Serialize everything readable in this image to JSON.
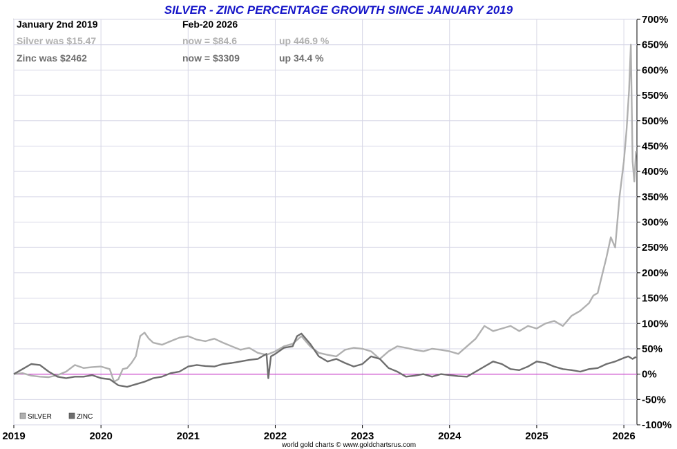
{
  "chart_data": {
    "type": "line",
    "title": "SILVER - ZINC PERCENTAGE GROWTH SINCE JANUARY 2019",
    "source": "world gold charts © www.goldchartsrus.com",
    "info": {
      "start_label": "January 2nd 2019",
      "end_label": "Feb-20  2026",
      "rows": [
        {
          "name": "silver",
          "was": "Silver was $15.47",
          "now": "now = $84.6",
          "change": "up 446.9 %",
          "color": "#b0b0b0"
        },
        {
          "name": "zinc",
          "was": "Zinc was $2462",
          "now": "now = $3309",
          "change": "up 34.4 %",
          "color": "#6e6e6e"
        }
      ]
    },
    "xlabel": "",
    "ylabel": "",
    "xlim": [
      2019.0,
      2026.15
    ],
    "ylim": [
      -100,
      700
    ],
    "x_ticks": [
      {
        "value": 2019,
        "label": "2019"
      },
      {
        "value": 2020,
        "label": "2020"
      },
      {
        "value": 2021,
        "label": "2021"
      },
      {
        "value": 2022,
        "label": "2022"
      },
      {
        "value": 2023,
        "label": "2023"
      },
      {
        "value": 2024,
        "label": "2024"
      },
      {
        "value": 2025,
        "label": "2025"
      },
      {
        "value": 2026,
        "label": "2026"
      }
    ],
    "y_ticks": [
      {
        "value": 700,
        "label": "700%"
      },
      {
        "value": 650,
        "label": "650%"
      },
      {
        "value": 600,
        "label": "600%"
      },
      {
        "value": 550,
        "label": "550%"
      },
      {
        "value": 500,
        "label": "500%"
      },
      {
        "value": 450,
        "label": "450%"
      },
      {
        "value": 400,
        "label": "400%"
      },
      {
        "value": 350,
        "label": "350%"
      },
      {
        "value": 300,
        "label": "300%"
      },
      {
        "value": 250,
        "label": "250%"
      },
      {
        "value": 200,
        "label": "200%"
      },
      {
        "value": 150,
        "label": "150%"
      },
      {
        "value": 100,
        "label": "100%"
      },
      {
        "value": 50,
        "label": "50%"
      },
      {
        "value": 0,
        "label": "0%"
      },
      {
        "value": -50,
        "label": "-50%"
      },
      {
        "value": -100,
        "label": "-100%"
      }
    ],
    "grid": true,
    "zero_line_color": "#cc44cc",
    "legend": {
      "placement": "bottom-left",
      "entries": [
        {
          "label": "SILVER",
          "color": "#b0b0b0"
        },
        {
          "label": "ZINC",
          "color": "#6e6e6e"
        }
      ]
    },
    "series": [
      {
        "name": "SILVER",
        "color": "#b0b0b0",
        "x": [
          2019.0,
          2019.1,
          2019.2,
          2019.3,
          2019.4,
          2019.5,
          2019.6,
          2019.7,
          2019.8,
          2019.9,
          2020.0,
          2020.1,
          2020.15,
          2020.2,
          2020.25,
          2020.3,
          2020.35,
          2020.4,
          2020.45,
          2020.5,
          2020.55,
          2020.6,
          2020.7,
          2020.8,
          2020.9,
          2021.0,
          2021.1,
          2021.2,
          2021.3,
          2021.4,
          2021.5,
          2021.6,
          2021.7,
          2021.8,
          2021.9,
          2022.0,
          2022.1,
          2022.2,
          2022.3,
          2022.4,
          2022.5,
          2022.6,
          2022.7,
          2022.8,
          2022.9,
          2023.0,
          2023.1,
          2023.2,
          2023.3,
          2023.4,
          2023.5,
          2023.6,
          2023.7,
          2023.8,
          2023.9,
          2024.0,
          2024.1,
          2024.2,
          2024.3,
          2024.4,
          2024.5,
          2024.6,
          2024.7,
          2024.8,
          2024.9,
          2025.0,
          2025.1,
          2025.2,
          2025.3,
          2025.4,
          2025.5,
          2025.6,
          2025.65,
          2025.7,
          2025.75,
          2025.8,
          2025.85,
          2025.9,
          2025.95,
          2026.0,
          2026.03,
          2026.06,
          2026.08,
          2026.1,
          2026.12,
          2026.14
        ],
        "y": [
          0,
          2,
          -3,
          -5,
          -6,
          -2,
          5,
          18,
          12,
          14,
          15,
          10,
          -15,
          -10,
          10,
          12,
          22,
          35,
          75,
          82,
          70,
          62,
          58,
          65,
          72,
          75,
          68,
          65,
          70,
          62,
          55,
          48,
          52,
          42,
          38,
          45,
          55,
          60,
          75,
          55,
          42,
          38,
          35,
          48,
          52,
          50,
          45,
          30,
          45,
          55,
          52,
          48,
          45,
          50,
          48,
          45,
          40,
          55,
          70,
          95,
          85,
          90,
          95,
          85,
          95,
          90,
          100,
          105,
          95,
          115,
          125,
          140,
          155,
          160,
          195,
          230,
          270,
          250,
          350,
          420,
          480,
          560,
          650,
          420,
          380,
          440
        ]
      },
      {
        "name": "ZINC",
        "color": "#6e6e6e",
        "x": [
          2019.0,
          2019.1,
          2019.2,
          2019.3,
          2019.4,
          2019.5,
          2019.6,
          2019.7,
          2019.8,
          2019.9,
          2020.0,
          2020.1,
          2020.2,
          2020.3,
          2020.4,
          2020.5,
          2020.6,
          2020.7,
          2020.8,
          2020.9,
          2021.0,
          2021.1,
          2021.2,
          2021.3,
          2021.4,
          2021.5,
          2021.6,
          2021.7,
          2021.8,
          2021.85,
          2021.9,
          2021.92,
          2021.95,
          2022.0,
          2022.1,
          2022.2,
          2022.25,
          2022.3,
          2022.4,
          2022.5,
          2022.6,
          2022.7,
          2022.8,
          2022.9,
          2023.0,
          2023.1,
          2023.2,
          2023.3,
          2023.4,
          2023.5,
          2023.6,
          2023.7,
          2023.8,
          2023.9,
          2024.0,
          2024.1,
          2024.2,
          2024.3,
          2024.4,
          2024.5,
          2024.6,
          2024.7,
          2024.8,
          2024.9,
          2025.0,
          2025.1,
          2025.2,
          2025.3,
          2025.4,
          2025.5,
          2025.6,
          2025.7,
          2025.8,
          2025.9,
          2026.0,
          2026.05,
          2026.1,
          2026.14
        ],
        "y": [
          0,
          10,
          20,
          18,
          5,
          -5,
          -8,
          -5,
          -5,
          -2,
          -8,
          -10,
          -22,
          -25,
          -20,
          -15,
          -8,
          -5,
          2,
          5,
          15,
          18,
          16,
          15,
          20,
          22,
          25,
          28,
          30,
          35,
          40,
          -8,
          35,
          40,
          52,
          55,
          75,
          80,
          60,
          35,
          25,
          30,
          22,
          15,
          20,
          35,
          30,
          12,
          5,
          -5,
          -3,
          0,
          -5,
          0,
          -2,
          -4,
          -5,
          5,
          15,
          25,
          20,
          10,
          8,
          15,
          25,
          22,
          15,
          10,
          8,
          5,
          10,
          12,
          20,
          25,
          32,
          35,
          30,
          34
        ]
      }
    ]
  }
}
